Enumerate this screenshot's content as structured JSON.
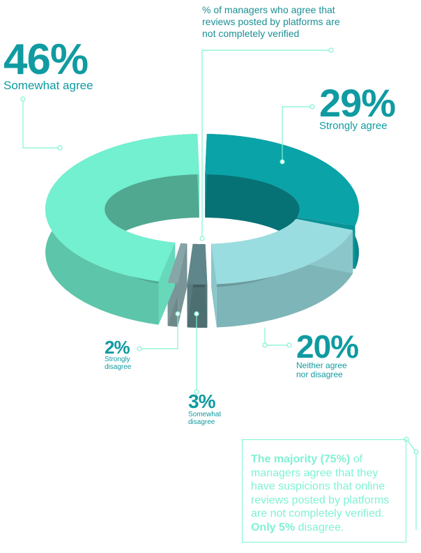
{
  "chart_data": {
    "type": "donut",
    "title": "% of managers who agree that reviews posted by platforms are not completely verified",
    "categories": [
      "Strongly agree",
      "Neither agree nor disagree",
      "Somewhat disagree",
      "Strongly disagree",
      "Somewhat agree"
    ],
    "values": [
      29,
      20,
      3,
      2,
      46
    ],
    "value_labels": [
      "29%",
      "20%",
      "3%",
      "2%",
      "46%"
    ],
    "colors": [
      "#0aa3a8",
      "#9adde0",
      "#5f878b",
      "#86a6a8",
      "#72f0cf"
    ],
    "note": [
      "The majority (75%)",
      "of managers agree that they have suspicions that online reviews posted by platforms are not completely verified.",
      "Only 5%",
      "disagree."
    ]
  }
}
